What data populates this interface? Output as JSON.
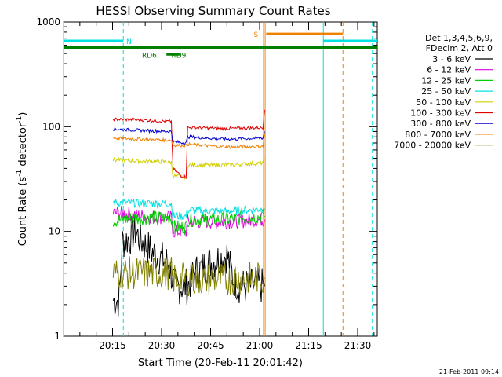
{
  "chart_data": {
    "type": "line",
    "title": "HESSI Observing Summary Count Rates",
    "xlabel": "Start Time (20-Feb-11 20:01:42)",
    "ylabel": "Count Rate (s",
    "ylabel_sup1": "-1",
    "ylabel_mid": " detector",
    "ylabel_sup2": "-1",
    "ylabel_end": ")",
    "yscale": "log",
    "ylim": [
      1,
      1000
    ],
    "xlim_minutes": [
      0,
      96
    ],
    "x_ticks": [
      {
        "t": 15,
        "label": "20:15"
      },
      {
        "t": 30,
        "label": "20:30"
      },
      {
        "t": 45,
        "label": "20:45"
      },
      {
        "t": 60,
        "label": "21:00"
      },
      {
        "t": 75,
        "label": "21:15"
      },
      {
        "t": 90,
        "label": "21:30"
      }
    ],
    "y_ticks": [
      {
        "v": 1,
        "label": "1"
      },
      {
        "v": 10,
        "label": "10"
      },
      {
        "v": 100,
        "label": "100"
      },
      {
        "v": 1000,
        "label": "1000"
      }
    ],
    "legend_header": [
      "Det 1,3,4,5,6,9,",
      "FDecim 2, Att 0"
    ],
    "legend_position": "right",
    "series": [
      {
        "name": "3 - 6 keV",
        "color": "#000000",
        "segments": [
          [
            [
              15.2,
              2.2
            ],
            [
              17,
              2.2
            ],
            [
              18,
              8
            ],
            [
              20,
              8.5
            ],
            [
              22,
              10
            ],
            [
              24,
              8
            ],
            [
              28,
              6
            ],
            [
              32,
              5
            ],
            [
              34,
              3
            ],
            [
              38,
              3
            ],
            [
              40,
              4
            ],
            [
              45,
              5
            ],
            [
              50,
              6
            ],
            [
              52,
              3.5
            ],
            [
              54,
              3
            ],
            [
              58,
              3
            ],
            [
              61.5,
              3
            ]
          ]
        ],
        "noise": 0.18
      },
      {
        "name": "6 - 12 keV",
        "color": "#e000e0",
        "segments": [
          [
            [
              15.2,
              15
            ],
            [
              18,
              15
            ],
            [
              24,
              14
            ],
            [
              33,
              13.5
            ],
            [
              33.5,
              10
            ],
            [
              37.5,
              10
            ],
            [
              38,
              12.5
            ],
            [
              50,
              12.3
            ],
            [
              61.5,
              13
            ]
          ]
        ],
        "noise": 0.07
      },
      {
        "name": "12 - 25 keV",
        "color": "#00d000",
        "segments": [
          [
            [
              15.2,
              12.5
            ],
            [
              18,
              13
            ],
            [
              24,
              13.5
            ],
            [
              33,
              13.5
            ],
            [
              33.5,
              11
            ],
            [
              37.5,
              11
            ],
            [
              38,
              13
            ],
            [
              50,
              13
            ],
            [
              61.5,
              14
            ]
          ]
        ],
        "noise": 0.07
      },
      {
        "name": "25 - 50 keV",
        "color": "#00e0e0",
        "segments": [
          [
            [
              15.2,
              19
            ],
            [
              24,
              18.5
            ],
            [
              33,
              18.5
            ],
            [
              33.5,
              14
            ],
            [
              37.5,
              14
            ],
            [
              38,
              16
            ],
            [
              50,
              15.5
            ],
            [
              61.5,
              16.5
            ]
          ]
        ],
        "noise": 0.04
      },
      {
        "name": "50 - 100 keV",
        "color": "#d0d000",
        "segments": [
          [
            [
              15.2,
              48
            ],
            [
              24,
              47
            ],
            [
              33,
              46
            ],
            [
              33.5,
              34
            ],
            [
              37.5,
              33
            ],
            [
              38,
              43
            ],
            [
              50,
              43
            ],
            [
              61,
              45
            ],
            [
              61.5,
              50
            ]
          ]
        ],
        "noise": 0.02
      },
      {
        "name": "100 - 300 keV",
        "color": "#e00000",
        "segments": [
          [
            [
              15.2,
              118
            ],
            [
              24,
              116
            ],
            [
              33,
              112
            ],
            [
              33.5,
              40
            ],
            [
              36,
              34
            ],
            [
              37.5,
              33
            ],
            [
              38,
              98
            ],
            [
              50,
              96
            ],
            [
              61,
              98
            ],
            [
              61.5,
              145
            ]
          ]
        ],
        "noise": 0.015
      },
      {
        "name": "300 - 800 keV",
        "color": "#0000d0",
        "segments": [
          [
            [
              15.2,
              95
            ],
            [
              24,
              92
            ],
            [
              33,
              90
            ],
            [
              33.5,
              72
            ],
            [
              37.5,
              70
            ],
            [
              38,
              80
            ],
            [
              50,
              76
            ],
            [
              61,
              78
            ],
            [
              61.5,
              90
            ]
          ]
        ],
        "noise": 0.015
      },
      {
        "name": "800 - 7000 keV",
        "color": "#f08000",
        "segments": [
          [
            [
              15.2,
              78
            ],
            [
              24,
              76
            ],
            [
              33,
              74
            ],
            [
              33.5,
              67
            ],
            [
              37.5,
              66
            ],
            [
              38,
              68
            ],
            [
              50,
              64
            ],
            [
              61,
              65
            ],
            [
              61.5,
              85
            ]
          ]
        ],
        "noise": 0.015
      },
      {
        "name": "7000 - 20000 keV",
        "color": "#808000",
        "segments": [
          [
            [
              15.2,
              4
            ],
            [
              24,
              4
            ],
            [
              33,
              4
            ],
            [
              33.5,
              3.5
            ],
            [
              38,
              3.5
            ],
            [
              50,
              3.5
            ],
            [
              61.5,
              3.6
            ]
          ]
        ],
        "noise": 0.16
      }
    ],
    "vertical_lines": [
      {
        "t": 0,
        "color": "#00e0e0",
        "style": "solid"
      },
      {
        "t": 18.3,
        "color": "#00e0e0",
        "style": "dashed"
      },
      {
        "t": 61.2,
        "color": "#f08000",
        "style": "solid"
      },
      {
        "t": 61.7,
        "color": "#f08000",
        "style": "solid"
      },
      {
        "t": 79.5,
        "color": "#00e0e0",
        "style": "solid"
      },
      {
        "t": 85.5,
        "color": "#f08000",
        "style": "dashed"
      },
      {
        "t": 94.5,
        "color": "#00e0e0",
        "style": "dashed"
      }
    ],
    "flag_bars": [
      {
        "label": "N",
        "color": "#00e0e0",
        "y": 660,
        "segments": [
          [
            0,
            18.3
          ],
          [
            79.5,
            96
          ]
        ],
        "label_t": 19.2
      },
      {
        "label": "S",
        "color": "#f08000",
        "y": 770,
        "segments": [
          [
            62,
            85.5
          ]
        ],
        "label_t": 58.2
      },
      {
        "label": "",
        "color": "#008000",
        "y": 570,
        "segments": [
          [
            0,
            96
          ]
        ],
        "label_t": 0
      },
      {
        "label": "RD9",
        "color": "#008000",
        "y": 490,
        "segments": [
          [
            31.5,
            35.5
          ]
        ],
        "label_t": 33
      },
      {
        "label": "RD6",
        "color": "#008000",
        "y": 490,
        "segments": [],
        "label_t": 24
      }
    ],
    "timestamp": "21-Feb-2011 09:14"
  }
}
